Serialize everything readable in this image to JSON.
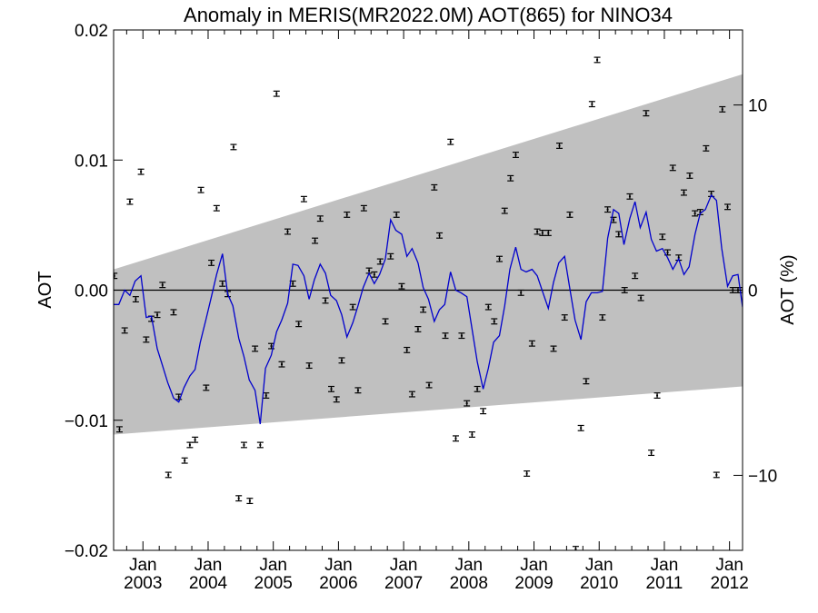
{
  "chart_data": {
    "type": "scatter",
    "title": "Anomaly in MERIS(MR2022.0M) AOT(865) for NINO34",
    "ylabel": "AOT",
    "ylabel_right": "AOT (%)",
    "xlim": [
      2002.55,
      2012.2
    ],
    "ylim": [
      -0.02,
      0.02
    ],
    "ylim_right_percent": [
      -14.05,
      14.05
    ],
    "grid": false,
    "x_ticks": [
      {
        "x": 2003.0,
        "label_top": "Jan",
        "label_bottom": "2003"
      },
      {
        "x": 2004.0,
        "label_top": "Jan",
        "label_bottom": "2004"
      },
      {
        "x": 2005.0,
        "label_top": "Jan",
        "label_bottom": "2005"
      },
      {
        "x": 2006.0,
        "label_top": "Jan",
        "label_bottom": "2006"
      },
      {
        "x": 2007.0,
        "label_top": "Jan",
        "label_bottom": "2007"
      },
      {
        "x": 2008.0,
        "label_top": "Jan",
        "label_bottom": "2008"
      },
      {
        "x": 2009.0,
        "label_top": "Jan",
        "label_bottom": "2009"
      },
      {
        "x": 2010.0,
        "label_top": "Jan",
        "label_bottom": "2010"
      },
      {
        "x": 2011.0,
        "label_top": "Jan",
        "label_bottom": "2011"
      },
      {
        "x": 2012.0,
        "label_top": "Jan",
        "label_bottom": "2012"
      }
    ],
    "y_ticks_left": [
      {
        "v": -0.02,
        "label": "−0.02"
      },
      {
        "v": -0.01,
        "label": "−0.01"
      },
      {
        "v": 0.0,
        "label": "0.00"
      },
      {
        "v": 0.01,
        "label": "0.01"
      },
      {
        "v": 0.02,
        "label": "0.02"
      }
    ],
    "y_ticks_right": [
      {
        "v": -10,
        "label": "−10"
      },
      {
        "v": 0,
        "label": "0"
      },
      {
        "v": 10,
        "label": "10"
      }
    ],
    "band": {
      "x": [
        2002.55,
        2012.2
      ],
      "upper": [
        0.0016,
        0.0166
      ],
      "lower": [
        -0.0111,
        -0.0074
      ],
      "color": "#c0c0c0"
    },
    "zero_line": 0.0,
    "series": [
      {
        "kind": "points_with_errorbars",
        "color": "#000000",
        "error": 0.0002,
        "x": [
          2002.56,
          2002.64,
          2002.72,
          2002.8,
          2002.89,
          2002.97,
          2003.05,
          2003.13,
          2003.22,
          2003.3,
          2003.39,
          2003.47,
          2003.55,
          2003.64,
          2003.72,
          2003.8,
          2003.89,
          2003.97,
          2004.05,
          2004.13,
          2004.22,
          2004.3,
          2004.39,
          2004.47,
          2004.55,
          2004.64,
          2004.72,
          2004.8,
          2004.89,
          2004.97,
          2005.05,
          2005.13,
          2005.22,
          2005.3,
          2005.39,
          2005.47,
          2005.55,
          2005.64,
          2005.72,
          2005.8,
          2005.89,
          2005.97,
          2006.05,
          2006.13,
          2006.22,
          2006.3,
          2006.39,
          2006.47,
          2006.55,
          2006.64,
          2006.72,
          2006.8,
          2006.89,
          2006.97,
          2007.05,
          2007.13,
          2007.22,
          2007.3,
          2007.39,
          2007.47,
          2007.55,
          2007.64,
          2007.72,
          2007.8,
          2007.89,
          2007.97,
          2008.05,
          2008.13,
          2008.22,
          2008.3,
          2008.39,
          2008.47,
          2008.55,
          2008.64,
          2008.72,
          2008.8,
          2008.89,
          2008.97,
          2009.05,
          2009.13,
          2009.22,
          2009.3,
          2009.39,
          2009.47,
          2009.55,
          2009.64,
          2009.72,
          2009.8,
          2009.89,
          2009.97,
          2010.05,
          2010.13,
          2010.22,
          2010.3,
          2010.39,
          2010.47,
          2010.55,
          2010.64,
          2010.72,
          2010.8,
          2010.89,
          2010.97,
          2011.05,
          2011.13,
          2011.22,
          2011.3,
          2011.39,
          2011.47,
          2011.55,
          2011.64,
          2011.72,
          2011.8,
          2011.89,
          2011.97,
          2012.05,
          2012.13,
          2012.2
        ],
        "y": [
          0.0011,
          -0.0107,
          -0.0031,
          0.0068,
          -0.0007,
          0.0091,
          -0.0038,
          -0.0022,
          -0.0019,
          0.0004,
          -0.0142,
          -0.0017,
          -0.0082,
          -0.0131,
          -0.0119,
          -0.0115,
          0.0077,
          -0.0075,
          0.0021,
          0.0063,
          0.0005,
          -0.0003,
          0.011,
          -0.016,
          -0.0119,
          -0.0162,
          -0.0045,
          -0.0119,
          -0.0081,
          -0.0043,
          0.0151,
          -0.0057,
          0.0045,
          0.0005,
          -0.0026,
          0.007,
          -0.0058,
          0.0038,
          0.0055,
          -0.0008,
          -0.0076,
          -0.0084,
          -0.0054,
          0.0058,
          -0.0013,
          -0.0077,
          0.0063,
          0.0015,
          0.0012,
          0.0022,
          -0.0024,
          0.0026,
          0.0058,
          0.0003,
          -0.0046,
          -0.008,
          -0.003,
          -0.0015,
          -0.0073,
          0.0079,
          0.0042,
          -0.0035,
          0.0114,
          -0.0114,
          -0.0035,
          -0.0087,
          -0.0111,
          -0.0076,
          -0.0093,
          -0.0013,
          -0.0024,
          0.0024,
          0.0061,
          0.0086,
          0.0104,
          -0.0002,
          -0.0141,
          -0.0041,
          0.0045,
          0.0044,
          0.0044,
          -0.0045,
          0.0111,
          -0.0021,
          0.0058,
          -0.0199,
          -0.0106,
          -0.007,
          0.0143,
          0.0177,
          -0.0021,
          0.0062,
          0.0054,
          0.0043,
          0.0,
          0.0072,
          0.0011,
          -0.0006,
          0.0136,
          -0.0125,
          -0.0081,
          0.0041,
          0.0029,
          0.0094,
          0.0025,
          0.0075,
          0.0088,
          0.0059,
          0.006,
          0.0109,
          0.0074,
          -0.0142,
          0.0139,
          0.0064,
          0.0,
          0.0,
          0.0
        ]
      },
      {
        "kind": "line",
        "color": "#0000cc",
        "x": [
          2002.55,
          2002.63,
          2002.72,
          2002.8,
          2002.88,
          2002.97,
          2003.05,
          2003.13,
          2003.22,
          2003.3,
          2003.38,
          2003.47,
          2003.55,
          2003.63,
          2003.72,
          2003.8,
          2003.88,
          2003.97,
          2004.05,
          2004.13,
          2004.22,
          2004.3,
          2004.38,
          2004.47,
          2004.55,
          2004.63,
          2004.72,
          2004.8,
          2004.88,
          2004.97,
          2005.05,
          2005.13,
          2005.22,
          2005.3,
          2005.38,
          2005.47,
          2005.55,
          2005.63,
          2005.72,
          2005.8,
          2005.88,
          2005.97,
          2006.05,
          2006.13,
          2006.22,
          2006.3,
          2006.38,
          2006.47,
          2006.55,
          2006.63,
          2006.72,
          2006.8,
          2006.88,
          2006.97,
          2007.05,
          2007.13,
          2007.22,
          2007.3,
          2007.38,
          2007.47,
          2007.55,
          2007.63,
          2007.72,
          2007.8,
          2007.88,
          2007.97,
          2008.05,
          2008.13,
          2008.22,
          2008.3,
          2008.38,
          2008.47,
          2008.55,
          2008.63,
          2008.72,
          2008.8,
          2008.88,
          2008.97,
          2009.05,
          2009.13,
          2009.22,
          2009.3,
          2009.38,
          2009.47,
          2009.55,
          2009.63,
          2009.72,
          2009.8,
          2009.88,
          2009.97,
          2010.05,
          2010.13,
          2010.22,
          2010.3,
          2010.38,
          2010.47,
          2010.55,
          2010.63,
          2010.72,
          2010.8,
          2010.88,
          2010.97,
          2011.05,
          2011.13,
          2011.22,
          2011.3,
          2011.38,
          2011.47,
          2011.55,
          2011.63,
          2011.72,
          2011.8,
          2011.88,
          2011.97,
          2012.05,
          2012.13,
          2012.2
        ],
        "y": [
          -0.0011,
          -0.0011,
          0.0,
          -0.0004,
          0.0007,
          0.0011,
          -0.0021,
          -0.002,
          -0.0045,
          -0.0058,
          -0.0071,
          -0.0083,
          -0.0086,
          -0.0075,
          -0.0066,
          -0.0061,
          -0.004,
          -0.0022,
          -0.0005,
          0.0012,
          0.0028,
          -0.0003,
          -0.0012,
          -0.0037,
          -0.0051,
          -0.0069,
          -0.0077,
          -0.0103,
          -0.006,
          -0.005,
          -0.0032,
          -0.0023,
          -0.001,
          0.002,
          0.0019,
          0.0011,
          -0.0007,
          0.0008,
          0.002,
          0.0013,
          -0.0004,
          -0.0008,
          -0.0019,
          -0.0036,
          -0.0025,
          -0.0012,
          0.0002,
          0.0013,
          0.0005,
          0.0012,
          0.0024,
          0.0054,
          0.0046,
          0.0043,
          0.0026,
          0.0032,
          0.0021,
          0.0002,
          -0.0007,
          -0.0024,
          -0.0015,
          -0.0011,
          0.0014,
          0.0,
          -0.0002,
          -0.0005,
          -0.003,
          -0.0055,
          -0.0076,
          -0.006,
          -0.004,
          -0.0035,
          -0.0012,
          0.0016,
          0.0033,
          0.0016,
          0.0014,
          0.0016,
          0.0011,
          -0.0001,
          -0.0014,
          0.0006,
          0.0021,
          0.0026,
          0.0001,
          -0.0023,
          -0.0038,
          -0.0009,
          -0.0002,
          -0.0002,
          -0.0001,
          0.004,
          0.0062,
          0.0059,
          0.0035,
          0.0055,
          0.0068,
          0.0048,
          0.006,
          0.0039,
          0.003,
          0.0032,
          0.0025,
          0.0016,
          0.0024,
          0.0012,
          0.0018,
          0.0043,
          0.0059,
          0.0062,
          0.0073,
          0.0069,
          0.0032,
          0.0003,
          0.0011,
          0.0012,
          -0.0013
        ]
      }
    ]
  }
}
